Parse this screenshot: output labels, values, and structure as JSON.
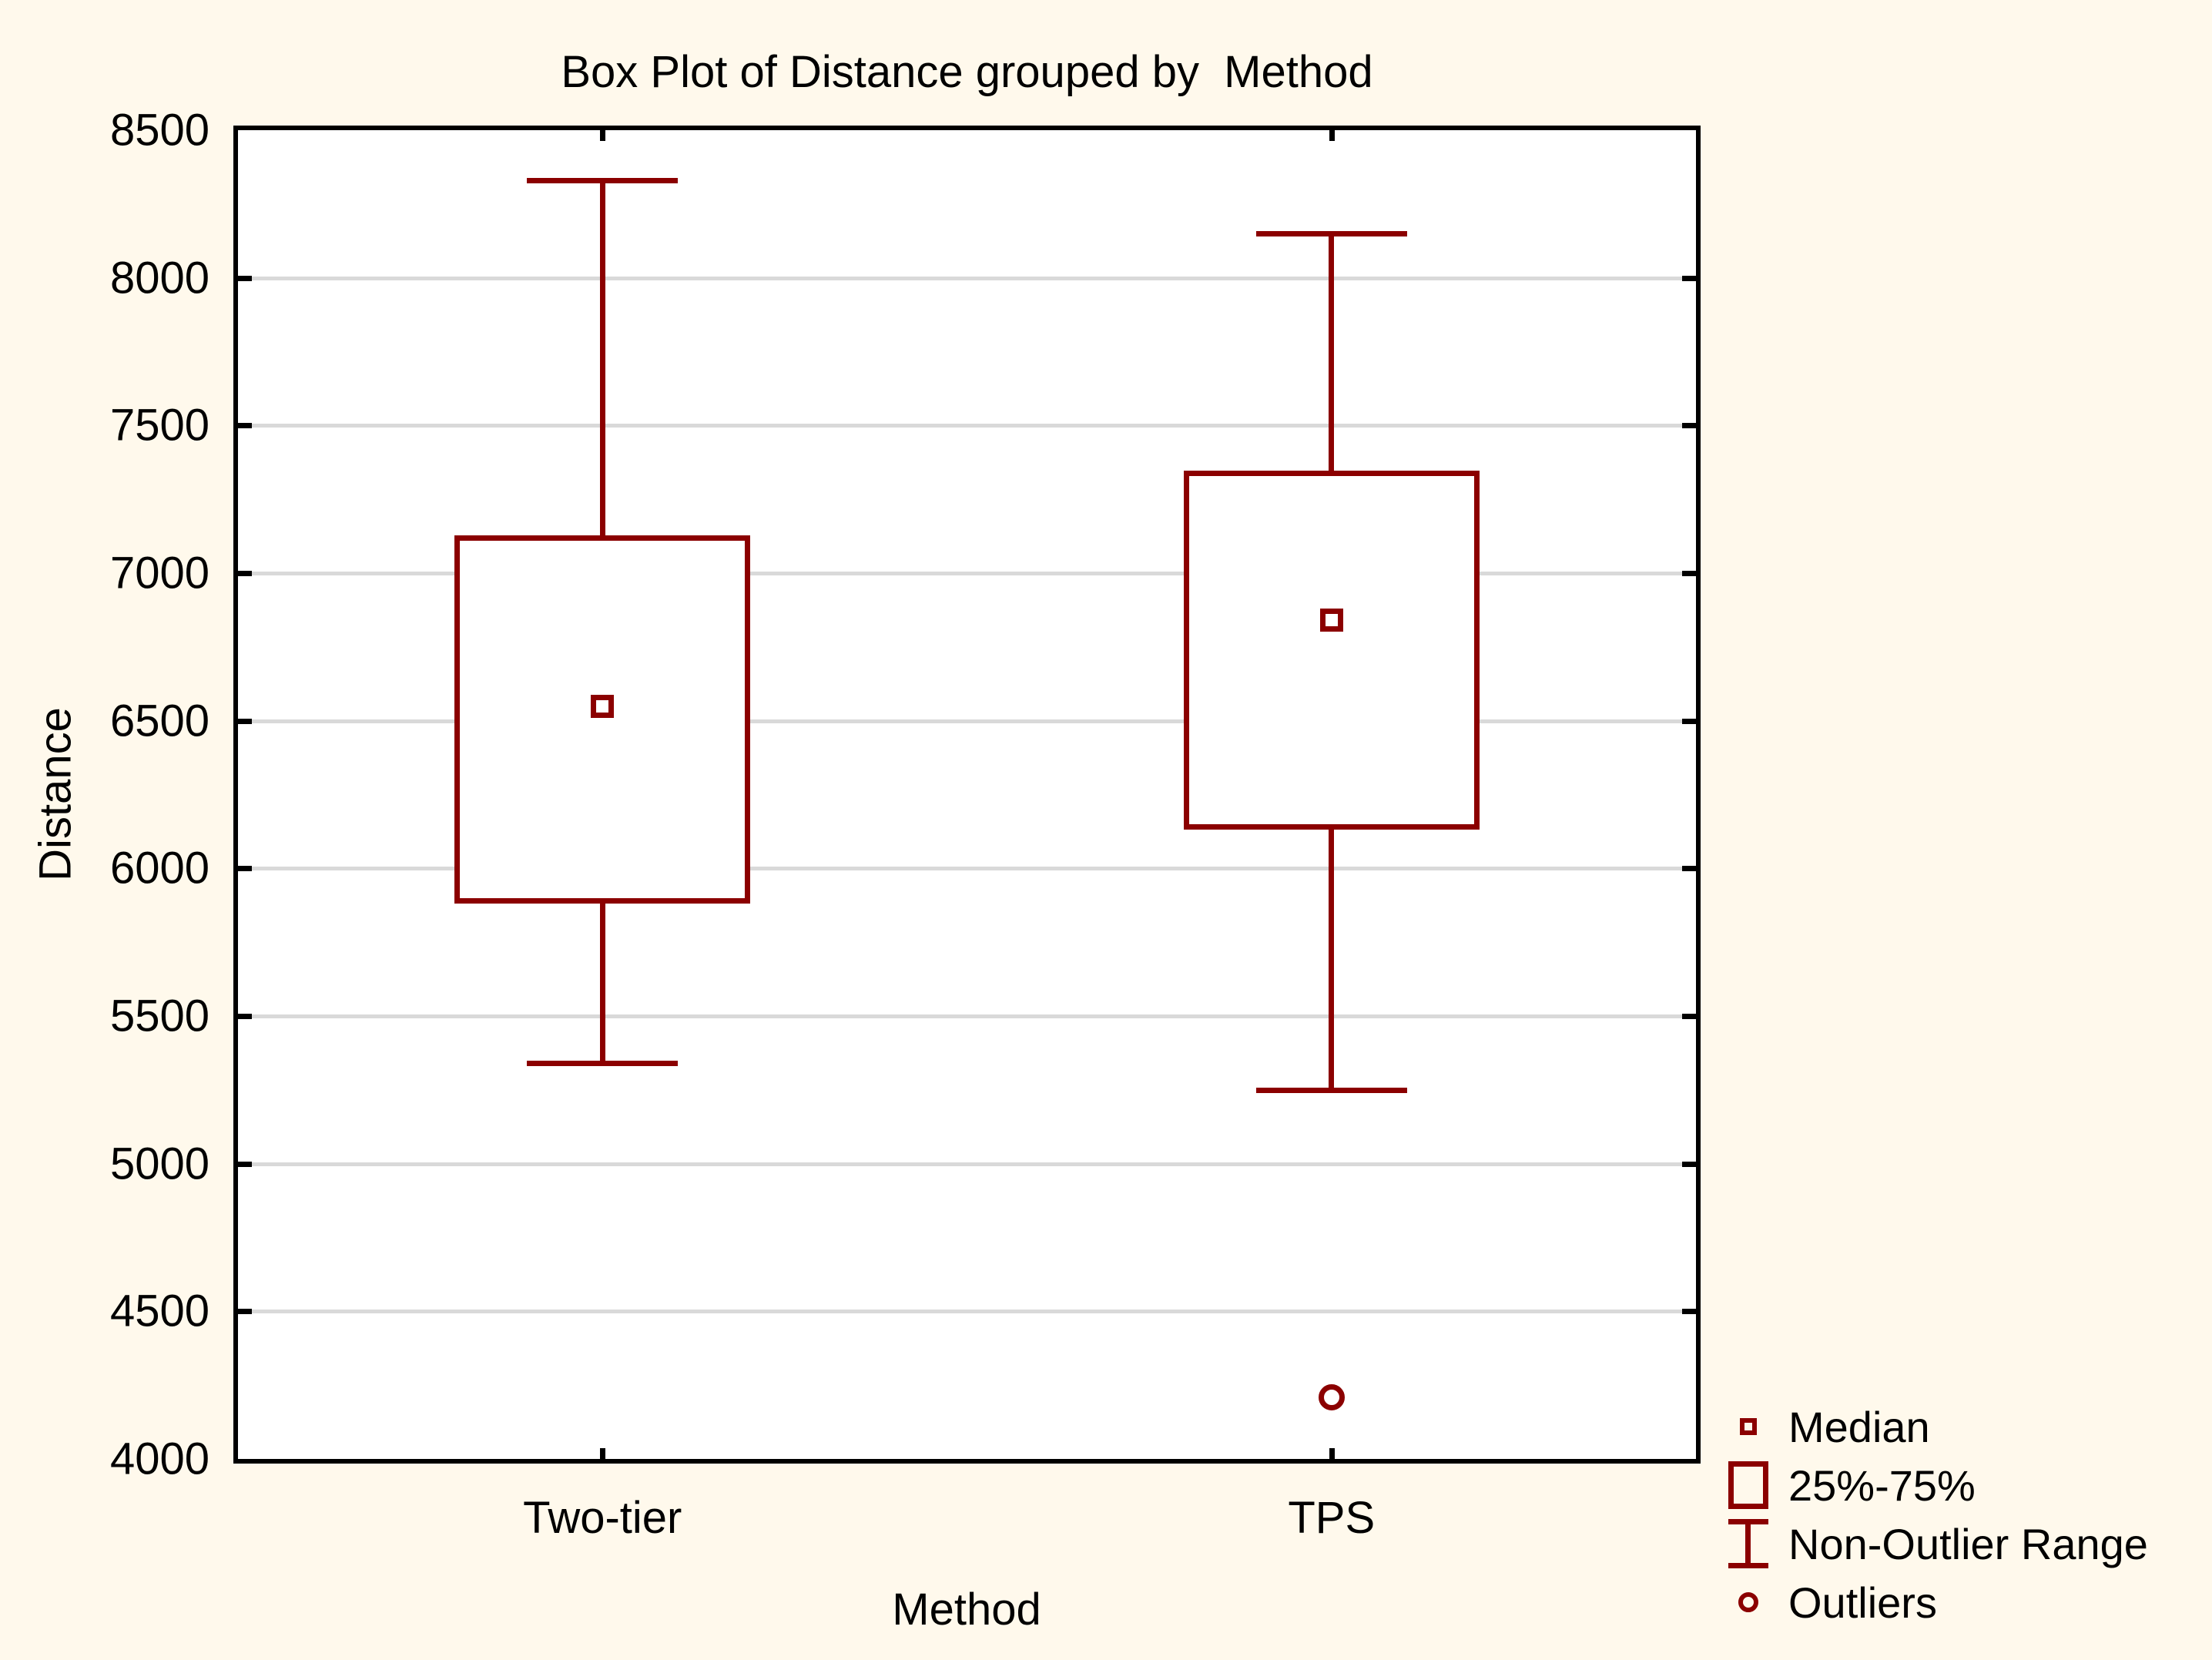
{
  "title": "Box Plot of Distance grouped by  Method",
  "y_axis": {
    "label": "Distance"
  },
  "x_axis": {
    "label": "Method"
  },
  "legend": {
    "items": [
      {
        "glyph": "median-square",
        "label": "Median"
      },
      {
        "glyph": "iqr-box",
        "label": "25%-75%"
      },
      {
        "glyph": "whisker-range",
        "label": "Non-Outlier Range"
      },
      {
        "glyph": "outlier-circle",
        "label": "Outliers"
      }
    ]
  },
  "chart_data": {
    "type": "boxplot",
    "title": "Box Plot of Distance grouped by  Method",
    "xlabel": "Method",
    "ylabel": "Distance",
    "ylim": [
      4000,
      8500
    ],
    "y_tick_interval": 500,
    "y_ticks": [
      8500,
      8000,
      7500,
      7000,
      6500,
      6000,
      5500,
      5000,
      4500,
      4000
    ],
    "grid": "horizontal",
    "legend_position": "bottom-right",
    "categories": [
      "Two-tier",
      "TPS"
    ],
    "series": [
      {
        "name": "Two-tier",
        "whisker_low": 5340,
        "q1": 5890,
        "median": 6550,
        "q3": 7120,
        "whisker_high": 8330,
        "outliers": []
      },
      {
        "name": "TPS",
        "whisker_low": 5250,
        "q1": 6140,
        "median": 6840,
        "q3": 7340,
        "whisker_high": 8150,
        "outliers": [
          4210
        ]
      }
    ],
    "colors": {
      "series": "#8B0000",
      "grid": "#D9D9D9",
      "frame": "#000000",
      "plot_bg": "#FFFFFF",
      "page_bg": "#FFF9EC",
      "text": "#000000"
    }
  }
}
